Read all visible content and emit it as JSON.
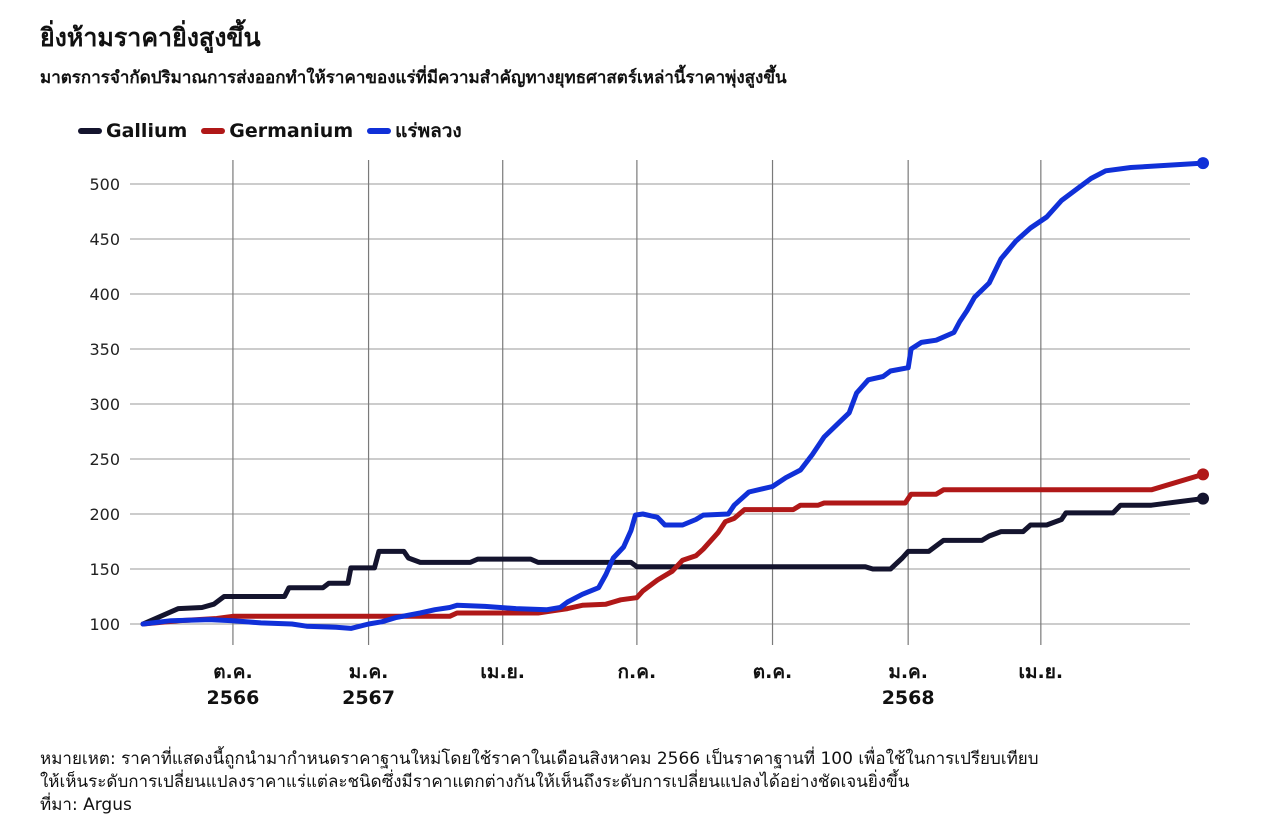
{
  "header": {
    "title": "ยิ่งห้ามราคายิ่งสูงขึ้น",
    "subtitle": "มาตรการจำกัดปริมาณการส่งออกทำให้ราคาของแร่ที่มีความสำคัญทางยุทธศาสตร์เหล่านี้ราคาพุ่งสูงขึ้น"
  },
  "legend": [
    {
      "name": "Gallium",
      "color": "#14142e"
    },
    {
      "name": "Germanium",
      "color": "#b01818"
    },
    {
      "name": "แร่พลวง",
      "color": "#1030d8"
    }
  ],
  "footer": {
    "note_line1": "หมายเหต: ราคาที่แสดงนี้ถูกนำมากำหนดราคาฐานใหม่โดยใช้ราคาในเดือนสิงหาคม 2566 เป็นราคาฐานที่ 100 เพื่อใช้ในการเปรียบเทียบ",
    "note_line2": "ให้เห็นระดับการเปลี่ยนแปลงราคาแร่แต่ละชนิดซึ่งมีราคาแตกต่างกันให้เห็นถึงระดับการเปลี่ยนแปลงได้อย่างชัดเจนยิ่งขึ้น",
    "source": "ที่มา: Argus"
  },
  "chart_data": {
    "type": "line",
    "title": "ยิ่งห้ามราคายิ่งสูงขึ้น",
    "subtitle": "มาตรการจำกัดปริมาณการส่งออกทำให้ราคาของแร่ที่มีความสำคัญทางยุทธศาสตร์เหล่านี้ราคาพุ่งสูงขึ้น",
    "xlabel": "",
    "ylabel": "",
    "ylim": [
      100,
      520
    ],
    "yticks": [
      100,
      150,
      200,
      250,
      300,
      350,
      400,
      450,
      500
    ],
    "grid": true,
    "legend_position": "top-left",
    "x_axis": {
      "start": "2023-08",
      "end": "2025-07",
      "ticks": [
        {
          "date": "2023-10",
          "label": "ต.ค.",
          "sublabel": "2566"
        },
        {
          "date": "2024-01",
          "label": "ม.ค.",
          "sublabel": "2567"
        },
        {
          "date": "2024-04",
          "label": "เม.ย.",
          "sublabel": ""
        },
        {
          "date": "2024-07",
          "label": "ก.ค.",
          "sublabel": ""
        },
        {
          "date": "2024-10",
          "label": "ต.ค.",
          "sublabel": ""
        },
        {
          "date": "2025-01",
          "label": "ม.ค.",
          "sublabel": "2568"
        },
        {
          "date": "2025-04",
          "label": "เม.ย.",
          "sublabel": ""
        }
      ]
    },
    "series": [
      {
        "name": "Gallium",
        "color": "#14142e",
        "points": [
          [
            "2023-08-01",
            100
          ],
          [
            "2023-08-25",
            114
          ],
          [
            "2023-09-10",
            115
          ],
          [
            "2023-09-18",
            118
          ],
          [
            "2023-09-25",
            125
          ],
          [
            "2023-11-05",
            125
          ],
          [
            "2023-11-08",
            133
          ],
          [
            "2023-12-01",
            133
          ],
          [
            "2023-12-05",
            137
          ],
          [
            "2023-12-18",
            137
          ],
          [
            "2023-12-20",
            151
          ],
          [
            "2024-01-05",
            151
          ],
          [
            "2024-01-08",
            166
          ],
          [
            "2024-01-25",
            166
          ],
          [
            "2024-01-28",
            160
          ],
          [
            "2024-02-05",
            156
          ],
          [
            "2024-03-10",
            156
          ],
          [
            "2024-03-15",
            159
          ],
          [
            "2024-04-20",
            159
          ],
          [
            "2024-04-25",
            156
          ],
          [
            "2024-06-27",
            156
          ],
          [
            "2024-07-01",
            152
          ],
          [
            "2024-12-03",
            152
          ],
          [
            "2024-12-08",
            150
          ],
          [
            "2024-12-20",
            150
          ],
          [
            "2024-12-28",
            160
          ],
          [
            "2025-01-01",
            166
          ],
          [
            "2025-01-15",
            166
          ],
          [
            "2025-01-25",
            176
          ],
          [
            "2025-02-20",
            176
          ],
          [
            "2025-02-25",
            180
          ],
          [
            "2025-03-05",
            184
          ],
          [
            "2025-03-20",
            184
          ],
          [
            "2025-03-25",
            190
          ],
          [
            "2025-04-05",
            190
          ],
          [
            "2025-04-15",
            195
          ],
          [
            "2025-04-18",
            201
          ],
          [
            "2025-05-20",
            201
          ],
          [
            "2025-05-25",
            208
          ],
          [
            "2025-06-15",
            208
          ],
          [
            "2025-07-20",
            214
          ]
        ]
      },
      {
        "name": "Germanium",
        "color": "#b01818",
        "points": [
          [
            "2023-08-01",
            100
          ],
          [
            "2023-08-25",
            103
          ],
          [
            "2023-09-20",
            105
          ],
          [
            "2023-10-01",
            107
          ],
          [
            "2024-02-25",
            107
          ],
          [
            "2024-03-01",
            110
          ],
          [
            "2024-04-25",
            110
          ],
          [
            "2024-05-05",
            112
          ],
          [
            "2024-05-15",
            114
          ],
          [
            "2024-05-25",
            117
          ],
          [
            "2024-06-10",
            118
          ],
          [
            "2024-06-15",
            120
          ],
          [
            "2024-06-20",
            122
          ],
          [
            "2024-07-01",
            124
          ],
          [
            "2024-07-05",
            130
          ],
          [
            "2024-07-15",
            140
          ],
          [
            "2024-07-25",
            148
          ],
          [
            "2024-08-01",
            158
          ],
          [
            "2024-08-10",
            162
          ],
          [
            "2024-08-15",
            168
          ],
          [
            "2024-08-25",
            183
          ],
          [
            "2024-08-30",
            193
          ],
          [
            "2024-09-05",
            196
          ],
          [
            "2024-09-12",
            204
          ],
          [
            "2024-10-15",
            204
          ],
          [
            "2024-10-20",
            208
          ],
          [
            "2024-11-01",
            208
          ],
          [
            "2024-11-05",
            210
          ],
          [
            "2024-12-30",
            210
          ],
          [
            "2025-01-03",
            218
          ],
          [
            "2025-01-20",
            218
          ],
          [
            "2025-01-25",
            222
          ],
          [
            "2025-06-15",
            222
          ],
          [
            "2025-07-20",
            236
          ]
        ]
      },
      {
        "name": "แร่พลวง",
        "color": "#1030d8",
        "points": [
          [
            "2023-08-01",
            100
          ],
          [
            "2023-08-20",
            103
          ],
          [
            "2023-09-15",
            104
          ],
          [
            "2023-10-01",
            103
          ],
          [
            "2023-10-20",
            101
          ],
          [
            "2023-11-10",
            100
          ],
          [
            "2023-11-20",
            98
          ],
          [
            "2023-12-10",
            97
          ],
          [
            "2023-12-20",
            96
          ],
          [
            "2024-01-01",
            100
          ],
          [
            "2024-01-10",
            102
          ],
          [
            "2024-01-20",
            106
          ],
          [
            "2024-02-05",
            110
          ],
          [
            "2024-02-15",
            113
          ],
          [
            "2024-02-25",
            115
          ],
          [
            "2024-03-01",
            117
          ],
          [
            "2024-03-20",
            116
          ],
          [
            "2024-04-10",
            114
          ],
          [
            "2024-05-01",
            113
          ],
          [
            "2024-05-10",
            115
          ],
          [
            "2024-05-15",
            120
          ],
          [
            "2024-05-25",
            127
          ],
          [
            "2024-06-05",
            133
          ],
          [
            "2024-06-10",
            145
          ],
          [
            "2024-06-15",
            160
          ],
          [
            "2024-06-22",
            170
          ],
          [
            "2024-06-27",
            185
          ],
          [
            "2024-06-30",
            199
          ],
          [
            "2024-07-05",
            200
          ],
          [
            "2024-07-15",
            197
          ],
          [
            "2024-07-20",
            190
          ],
          [
            "2024-08-01",
            190
          ],
          [
            "2024-08-10",
            195
          ],
          [
            "2024-08-15",
            199
          ],
          [
            "2024-09-01",
            200
          ],
          [
            "2024-09-05",
            208
          ],
          [
            "2024-09-15",
            220
          ],
          [
            "2024-10-01",
            225
          ],
          [
            "2024-10-10",
            233
          ],
          [
            "2024-10-20",
            240
          ],
          [
            "2024-10-28",
            254
          ],
          [
            "2024-11-05",
            270
          ],
          [
            "2024-11-15",
            283
          ],
          [
            "2024-11-22",
            292
          ],
          [
            "2024-11-27",
            310
          ],
          [
            "2024-12-05",
            322
          ],
          [
            "2024-12-15",
            325
          ],
          [
            "2024-12-20",
            330
          ],
          [
            "2025-01-01",
            333
          ],
          [
            "2025-01-03",
            350
          ],
          [
            "2025-01-10",
            356
          ],
          [
            "2025-01-20",
            358
          ],
          [
            "2025-02-01",
            365
          ],
          [
            "2025-02-05",
            375
          ],
          [
            "2025-02-10",
            385
          ],
          [
            "2025-02-15",
            397
          ],
          [
            "2025-02-25",
            410
          ],
          [
            "2025-03-05",
            432
          ],
          [
            "2025-03-15",
            448
          ],
          [
            "2025-03-25",
            460
          ],
          [
            "2025-04-05",
            470
          ],
          [
            "2025-04-15",
            485
          ],
          [
            "2025-04-25",
            495
          ],
          [
            "2025-05-05",
            505
          ],
          [
            "2025-05-15",
            512
          ],
          [
            "2025-06-01",
            515
          ],
          [
            "2025-07-20",
            519
          ]
        ]
      }
    ]
  }
}
